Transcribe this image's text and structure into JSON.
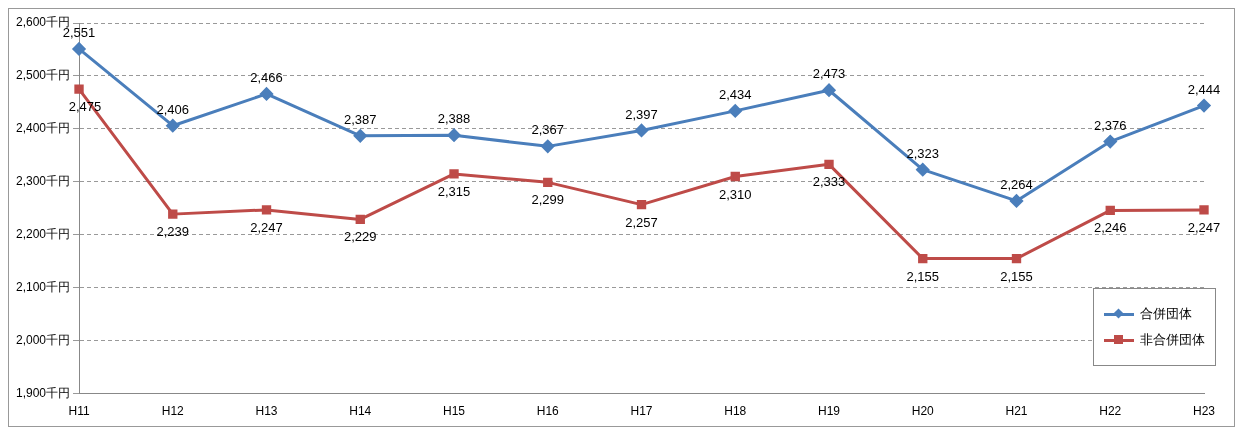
{
  "chart_data": {
    "type": "line",
    "categories": [
      "H11",
      "H12",
      "H13",
      "H14",
      "H15",
      "H16",
      "H17",
      "H18",
      "H19",
      "H20",
      "H21",
      "H22",
      "H23"
    ],
    "series": [
      {
        "name": "合併団体",
        "color": "#4a7ebb",
        "marker": "diamond",
        "values": [
          2551,
          2406,
          2466,
          2387,
          2388,
          2367,
          2397,
          2434,
          2473,
          2323,
          2264,
          2376,
          2444
        ],
        "value_labels": [
          "2,551",
          "2,406",
          "2,466",
          "2,387",
          "2,388",
          "2,367",
          "2,397",
          "2,434",
          "2,473",
          "2,323",
          "2,264",
          "2,376",
          "2,444"
        ]
      },
      {
        "name": "非合併団体",
        "color": "#be4b48",
        "marker": "square",
        "values": [
          2475,
          2239,
          2247,
          2229,
          2315,
          2299,
          2257,
          2310,
          2333,
          2155,
          2155,
          2246,
          2247
        ],
        "value_labels": [
          "2,475",
          "2,239",
          "2,247",
          "2,229",
          "2,315",
          "2,299",
          "2,257",
          "2,310",
          "2,333",
          "2,155",
          "2,155",
          "2,246",
          "2,247"
        ]
      }
    ],
    "ylim": [
      1900,
      2600
    ],
    "yticks": [
      {
        "value": 1900,
        "label": "1,900千円"
      },
      {
        "value": 2000,
        "label": "2,000千円"
      },
      {
        "value": 2100,
        "label": "2,100千円"
      },
      {
        "value": 2200,
        "label": "2,200千円"
      },
      {
        "value": 2300,
        "label": "2,300千円"
      },
      {
        "value": 2400,
        "label": "2,400千円"
      },
      {
        "value": 2500,
        "label": "2,500千円"
      },
      {
        "value": 2600,
        "label": "2,600千円"
      }
    ],
    "grid": "y",
    "line_style": "solid",
    "legend": "bottom right"
  }
}
